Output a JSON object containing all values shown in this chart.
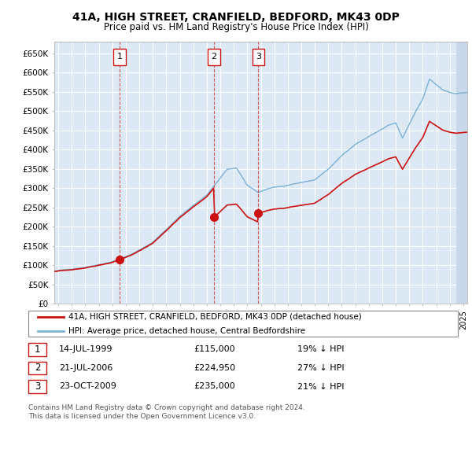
{
  "title": "41A, HIGH STREET, CRANFIELD, BEDFORD, MK43 0DP",
  "subtitle": "Price paid vs. HM Land Registry's House Price Index (HPI)",
  "background_color": "#ffffff",
  "plot_bg_color": "#dce9f5",
  "grid_color": "#ffffff",
  "ylim": [
    0,
    680000
  ],
  "yticks": [
    0,
    50000,
    100000,
    150000,
    200000,
    250000,
    300000,
    350000,
    400000,
    450000,
    500000,
    550000,
    600000,
    650000
  ],
  "ytick_labels": [
    "£0",
    "£50K",
    "£100K",
    "£150K",
    "£200K",
    "£250K",
    "£300K",
    "£350K",
    "£400K",
    "£450K",
    "£500K",
    "£550K",
    "£600K",
    "£650K"
  ],
  "xlim_start": 1994.7,
  "xlim_end": 2025.3,
  "sales": [
    {
      "year": 1999.54,
      "price": 115000,
      "label": "1"
    },
    {
      "year": 2006.54,
      "price": 224950,
      "label": "2"
    },
    {
      "year": 2009.81,
      "price": 235000,
      "label": "3"
    }
  ],
  "legend_entries": [
    "41A, HIGH STREET, CRANFIELD, BEDFORD, MK43 0DP (detached house)",
    "HPI: Average price, detached house, Central Bedfordshire"
  ],
  "table_rows": [
    {
      "num": "1",
      "date": "14-JUL-1999",
      "price": "£115,000",
      "note": "19% ↓ HPI"
    },
    {
      "num": "2",
      "date": "21-JUL-2006",
      "price": "£224,950",
      "note": "27% ↓ HPI"
    },
    {
      "num": "3",
      "date": "23-OCT-2009",
      "price": "£235,000",
      "note": "21% ↓ HPI"
    }
  ],
  "footer": "Contains HM Land Registry data © Crown copyright and database right 2024.\nThis data is licensed under the Open Government Licence v3.0.",
  "hpi_color": "#7bafd4",
  "sale_color": "#cc1111",
  "vline_color": "#cc3333",
  "box_color": "#cc1111",
  "hatch_color": "#c8d8e8"
}
